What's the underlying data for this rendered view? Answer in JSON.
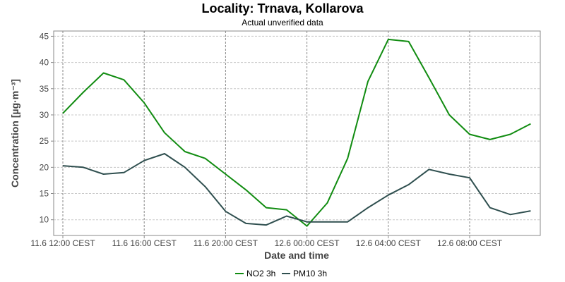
{
  "chart_data": {
    "type": "line",
    "title": "Locality: Trnava, Kollarova",
    "subtitle": "Actual unverified data",
    "xlabel": "Date and time",
    "ylabel": "Concentration [µg·m⁻³]",
    "ylim": [
      7,
      46
    ],
    "y_ticks": [
      10,
      15,
      20,
      25,
      30,
      35,
      40,
      45
    ],
    "x_ticks": [
      {
        "index": 0,
        "label": "11.6 12:00 CEST"
      },
      {
        "index": 4,
        "label": "11.6 16:00 CEST"
      },
      {
        "index": 8,
        "label": "11.6 20:00 CEST"
      },
      {
        "index": 12,
        "label": "12.6 00:00 CEST"
      },
      {
        "index": 16,
        "label": "12.6 04:00 CEST"
      },
      {
        "index": 20,
        "label": "12.6 08:00 CEST"
      }
    ],
    "x": [
      "11.6 12:00",
      "11.6 13:00",
      "11.6 14:00",
      "11.6 15:00",
      "11.6 16:00",
      "11.6 17:00",
      "11.6 18:00",
      "11.6 19:00",
      "11.6 20:00",
      "11.6 21:00",
      "11.6 22:00",
      "11.6 23:00",
      "12.6 00:00",
      "12.6 01:00",
      "12.6 02:00",
      "12.6 03:00",
      "12.6 04:00",
      "12.6 05:00",
      "12.6 06:00",
      "12.6 07:00",
      "12.6 08:00",
      "12.6 09:00",
      "12.6 10:00",
      "12.6 11:00"
    ],
    "grid": true,
    "legend_position": "bottom",
    "series": [
      {
        "name": "NO2 3h",
        "color": "#118c11",
        "values": [
          30.3,
          34.3,
          38.0,
          36.7,
          32.3,
          26.6,
          23.0,
          21.7,
          18.7,
          15.7,
          12.3,
          11.9,
          8.8,
          13.2,
          21.7,
          36.4,
          44.4,
          44.0,
          37.1,
          30.0,
          26.3,
          25.3,
          26.3,
          28.3
        ]
      },
      {
        "name": "PM10 3h",
        "color": "#2f4f4f",
        "values": [
          20.3,
          20.0,
          18.7,
          19.0,
          21.3,
          22.6,
          20.0,
          16.3,
          11.6,
          9.3,
          9.0,
          10.7,
          9.6,
          9.6,
          9.6,
          12.3,
          14.7,
          16.7,
          19.6,
          18.7,
          18.0,
          12.3,
          11.0,
          11.7
        ]
      }
    ]
  }
}
